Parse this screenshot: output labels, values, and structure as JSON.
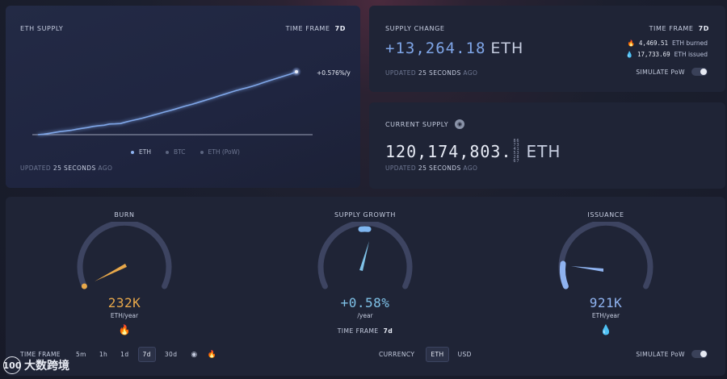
{
  "supply_card": {
    "title": "ETH SUPPLY",
    "timeframe_label": "TIME FRAME",
    "timeframe_value": "7d",
    "end_label": "+0.576%/y",
    "legend": [
      "ETH",
      "BTC",
      "ETH (PoW)"
    ],
    "updated_prefix": "UPDATED",
    "updated_value": "25 SECONDS",
    "updated_suffix": "AGO"
  },
  "chart_data": {
    "type": "line",
    "series": [
      {
        "name": "ETH",
        "values": [
          0,
          0.6,
          1.5,
          2.6,
          3.6,
          4.4,
          5.2,
          6.4,
          7.5,
          8.4,
          9.8,
          10.6,
          11.2,
          12.6,
          12.8,
          13.2,
          15,
          16.6,
          18.1,
          19.6,
          21.4,
          23.2,
          25,
          26.9,
          28.6,
          30.4,
          32.4,
          34.3,
          36,
          38,
          40,
          42,
          44,
          46.1,
          48.1,
          50.2,
          52.2,
          54,
          55.7,
          57.5,
          59.6,
          61.8,
          64,
          66,
          68,
          70.1,
          72.1,
          74.6
        ]
      }
    ],
    "legend_entries": [
      "ETH",
      "BTC",
      "ETH (PoW)"
    ],
    "end_annotation": "+0.576%/y",
    "grid": false
  },
  "supply_change": {
    "title": "SUPPLY CHANGE",
    "timeframe_label": "TIME FRAME",
    "timeframe_value": "7d",
    "value": "+13,264.18",
    "unit": "ETH",
    "burned_value": "4,469.51",
    "burned_label": "ETH burned",
    "issued_value": "17,733.69",
    "issued_label": "ETH issued",
    "updated_prefix": "UPDATED",
    "updated_value": "25 SECONDS",
    "updated_suffix": "AGO",
    "simulate_label": "SIMULATE PoW"
  },
  "current_supply": {
    "title": "CURRENT SUPPLY",
    "value": "120,174,803.",
    "fraction_digits": "867341532867",
    "unit": "ETH",
    "updated_prefix": "UPDATED",
    "updated_value": "25 SECONDS",
    "updated_suffix": "AGO"
  },
  "gauges": {
    "burn": {
      "title": "BURN",
      "value": "232K",
      "unit": "ETH/year",
      "color": "#e8a84a"
    },
    "growth": {
      "title": "SUPPLY GROWTH",
      "value": "+0.58%",
      "unit": "/year",
      "color": "#7fc2e8",
      "timeframe_label": "TIME FRAME",
      "timeframe_value": "7d"
    },
    "issuance": {
      "title": "ISSUANCE",
      "value": "921K",
      "unit": "ETH/year",
      "color": "#8fb3f0"
    }
  },
  "controls": {
    "timeframe_label": "TIME FRAME",
    "timeframes": [
      "5m",
      "1h",
      "1d",
      "7d",
      "30d"
    ],
    "selected_timeframe": "7d",
    "currency_label": "CURRENCY",
    "currencies": [
      "ETH",
      "USD"
    ],
    "selected_currency": "ETH",
    "simulate_label": "SIMULATE PoW"
  },
  "watermark": {
    "logo": "100",
    "text": "大数跨境"
  },
  "colors": {
    "accent": "#7fa6e8",
    "burn": "#e8a84a",
    "growth": "#7fc2e8",
    "background": "#1f2436"
  }
}
